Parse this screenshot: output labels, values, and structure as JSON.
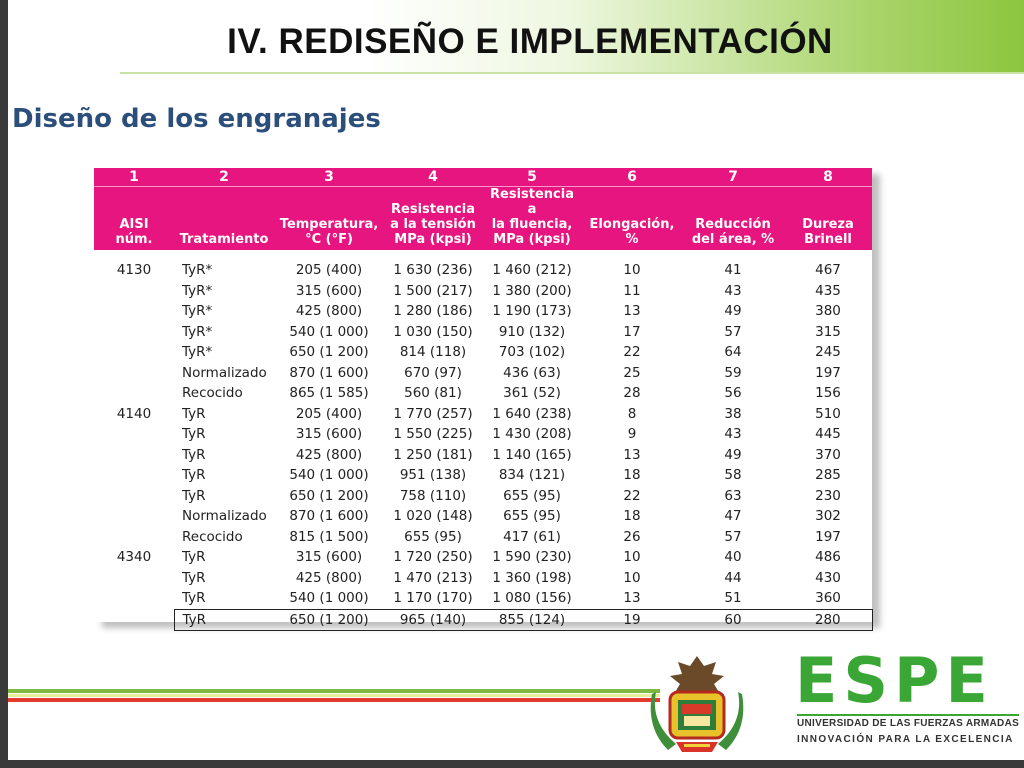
{
  "slide": {
    "title": "IV. REDISEÑO E IMPLEMENTACIÓN",
    "subtitle": "Diseño de los engranajes"
  },
  "table": {
    "numbers": [
      "1",
      "2",
      "3",
      "4",
      "5",
      "6",
      "7",
      "8"
    ],
    "headers": [
      [
        "AISI",
        "núm."
      ],
      [
        "Tratamiento"
      ],
      [
        "Temperatura,",
        "°C (°F)"
      ],
      [
        "Resistencia",
        "a la tensión",
        "MPa (kpsi)"
      ],
      [
        "Resistencia a",
        "la fluencia,",
        "MPa (kpsi)"
      ],
      [
        "Elongación,",
        "%"
      ],
      [
        "Reducción",
        "del área, %"
      ],
      [
        "Dureza",
        "Brinell"
      ]
    ],
    "rows": [
      [
        "4130",
        "TyR*",
        "205  (400)",
        "1 630  (236)",
        "1 460  (212)",
        "10",
        "41",
        "467"
      ],
      [
        "",
        "TyR*",
        "315  (600)",
        "1 500  (217)",
        "1 380  (200)",
        "11",
        "43",
        "435"
      ],
      [
        "",
        "TyR*",
        "425  (800)",
        "1 280  (186)",
        "1 190  (173)",
        "13",
        "49",
        "380"
      ],
      [
        "",
        "TyR*",
        "540  (1 000)",
        "1 030  (150)",
        "910  (132)",
        "17",
        "57",
        "315"
      ],
      [
        "",
        "TyR*",
        "650  (1 200)",
        "814  (118)",
        "703  (102)",
        "22",
        "64",
        "245"
      ],
      [
        "",
        "Normalizado",
        "870  (1 600)",
        "670  (97)",
        "436  (63)",
        "25",
        "59",
        "197"
      ],
      [
        "",
        "Recocido",
        "865  (1 585)",
        "560  (81)",
        "361  (52)",
        "28",
        "56",
        "156"
      ],
      [
        "4140",
        "TyR",
        "205  (400)",
        "1 770  (257)",
        "1 640  (238)",
        "8",
        "38",
        "510"
      ],
      [
        "",
        "TyR",
        "315  (600)",
        "1 550  (225)",
        "1 430  (208)",
        "9",
        "43",
        "445"
      ],
      [
        "",
        "TyR",
        "425  (800)",
        "1 250  (181)",
        "1 140  (165)",
        "13",
        "49",
        "370"
      ],
      [
        "",
        "TyR",
        "540  (1 000)",
        "951  (138)",
        "834  (121)",
        "18",
        "58",
        "285"
      ],
      [
        "",
        "TyR",
        "650  (1 200)",
        "758  (110)",
        "655  (95)",
        "22",
        "63",
        "230"
      ],
      [
        "",
        "Normalizado",
        "870  (1 600)",
        "1 020  (148)",
        "655  (95)",
        "18",
        "47",
        "302"
      ],
      [
        "",
        "Recocido",
        "815  (1 500)",
        "655  (95)",
        "417  (61)",
        "26",
        "57",
        "197"
      ],
      [
        "4340",
        "TyR",
        "315  (600)",
        "1 720  (250)",
        "1 590  (230)",
        "10",
        "40",
        "486"
      ],
      [
        "",
        "TyR",
        "425  (800)",
        "1 470  (213)",
        "1 360  (198)",
        "10",
        "44",
        "430"
      ],
      [
        "",
        "TyR",
        "540  (1 000)",
        "1 170  (170)",
        "1 080  (156)",
        "13",
        "51",
        "360"
      ],
      [
        "",
        "TyR",
        "650  (1 200)",
        "965  (140)",
        "855  (124)",
        "19",
        "60",
        "280"
      ]
    ],
    "highlighted_row": 17
  },
  "logo": {
    "name": "ESPE",
    "line1": "UNIVERSIDAD DE LAS FUERZAS ARMADAS",
    "line2": "INNOVACIÓN PARA LA EXCELENCIA"
  },
  "colors": {
    "header_magenta": "#e6157f",
    "espe_green": "#3aa635",
    "subtitle_blue": "#2c4e7a",
    "title_gradient_green": "#8cc63f"
  }
}
